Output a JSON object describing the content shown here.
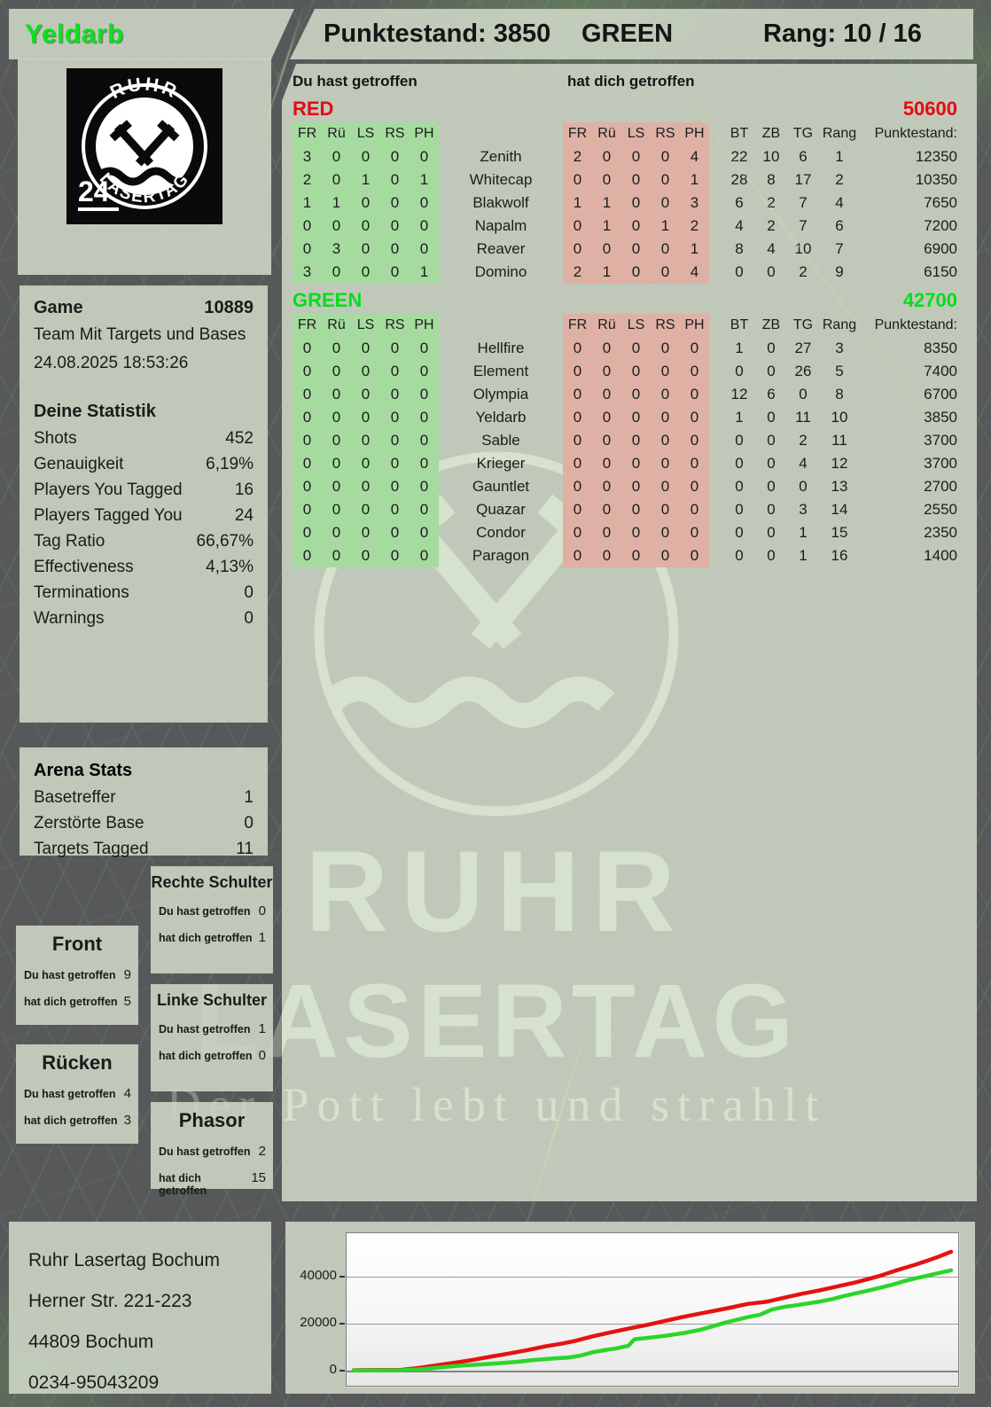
{
  "header": {
    "player": "Yeldarb",
    "punktestand": "Punktestand: 3850",
    "team": "GREEN",
    "rang": "Rang: 10 / 16"
  },
  "logo": {
    "top": "RUHR",
    "bottom": "LASERTAG",
    "badge": "24"
  },
  "watermark": {
    "line1": "RUHR",
    "line2": "LASERTAG",
    "tagline": "Der Pott lebt und strahlt"
  },
  "main": {
    "you_label": "Du hast getroffen",
    "them_label": "hat dich getroffen",
    "hit_cols": [
      "FR",
      "Rü",
      "LS",
      "RS",
      "PH"
    ],
    "stat_cols": [
      "BT",
      "ZB",
      "TG",
      "Rang",
      "Punktestand:"
    ]
  },
  "teams": [
    {
      "name": "RED",
      "color": "#e30b12",
      "total": "50600",
      "rows": [
        {
          "name": "Zenith",
          "you": [
            3,
            0,
            0,
            0,
            0
          ],
          "them": [
            2,
            0,
            0,
            0,
            4
          ],
          "bt": 22,
          "zb": 10,
          "tg": 6,
          "rang": 1,
          "punkte": "12350"
        },
        {
          "name": "Whitecap",
          "you": [
            2,
            0,
            1,
            0,
            1
          ],
          "them": [
            0,
            0,
            0,
            0,
            1
          ],
          "bt": 28,
          "zb": 8,
          "tg": 17,
          "rang": 2,
          "punkte": "10350"
        },
        {
          "name": "Blakwolf",
          "you": [
            1,
            1,
            0,
            0,
            0
          ],
          "them": [
            1,
            1,
            0,
            0,
            3
          ],
          "bt": 6,
          "zb": 2,
          "tg": 7,
          "rang": 4,
          "punkte": "7650"
        },
        {
          "name": "Napalm",
          "you": [
            0,
            0,
            0,
            0,
            0
          ],
          "them": [
            0,
            1,
            0,
            1,
            2
          ],
          "bt": 4,
          "zb": 2,
          "tg": 7,
          "rang": 6,
          "punkte": "7200"
        },
        {
          "name": "Reaver",
          "you": [
            0,
            3,
            0,
            0,
            0
          ],
          "them": [
            0,
            0,
            0,
            0,
            1
          ],
          "bt": 8,
          "zb": 4,
          "tg": 10,
          "rang": 7,
          "punkte": "6900"
        },
        {
          "name": "Domino",
          "you": [
            3,
            0,
            0,
            0,
            1
          ],
          "them": [
            2,
            1,
            0,
            0,
            4
          ],
          "bt": 0,
          "zb": 0,
          "tg": 2,
          "rang": 9,
          "punkte": "6150"
        }
      ]
    },
    {
      "name": "GREEN",
      "color": "#07dd1b",
      "total": "42700",
      "rows": [
        {
          "name": "Hellfire",
          "you": [
            0,
            0,
            0,
            0,
            0
          ],
          "them": [
            0,
            0,
            0,
            0,
            0
          ],
          "bt": 1,
          "zb": 0,
          "tg": 27,
          "rang": 3,
          "punkte": "8350"
        },
        {
          "name": "Element",
          "you": [
            0,
            0,
            0,
            0,
            0
          ],
          "them": [
            0,
            0,
            0,
            0,
            0
          ],
          "bt": 0,
          "zb": 0,
          "tg": 26,
          "rang": 5,
          "punkte": "7400"
        },
        {
          "name": "Olympia",
          "you": [
            0,
            0,
            0,
            0,
            0
          ],
          "them": [
            0,
            0,
            0,
            0,
            0
          ],
          "bt": 12,
          "zb": 6,
          "tg": 0,
          "rang": 8,
          "punkte": "6700"
        },
        {
          "name": "Yeldarb",
          "you": [
            0,
            0,
            0,
            0,
            0
          ],
          "them": [
            0,
            0,
            0,
            0,
            0
          ],
          "bt": 1,
          "zb": 0,
          "tg": 11,
          "rang": 10,
          "punkte": "3850"
        },
        {
          "name": "Sable",
          "you": [
            0,
            0,
            0,
            0,
            0
          ],
          "them": [
            0,
            0,
            0,
            0,
            0
          ],
          "bt": 0,
          "zb": 0,
          "tg": 2,
          "rang": 11,
          "punkte": "3700"
        },
        {
          "name": "Krieger",
          "you": [
            0,
            0,
            0,
            0,
            0
          ],
          "them": [
            0,
            0,
            0,
            0,
            0
          ],
          "bt": 0,
          "zb": 0,
          "tg": 4,
          "rang": 12,
          "punkte": "3700"
        },
        {
          "name": "Gauntlet",
          "you": [
            0,
            0,
            0,
            0,
            0
          ],
          "them": [
            0,
            0,
            0,
            0,
            0
          ],
          "bt": 0,
          "zb": 0,
          "tg": 0,
          "rang": 13,
          "punkte": "2700"
        },
        {
          "name": "Quazar",
          "you": [
            0,
            0,
            0,
            0,
            0
          ],
          "them": [
            0,
            0,
            0,
            0,
            0
          ],
          "bt": 0,
          "zb": 0,
          "tg": 3,
          "rang": 14,
          "punkte": "2550"
        },
        {
          "name": "Condor",
          "you": [
            0,
            0,
            0,
            0,
            0
          ],
          "them": [
            0,
            0,
            0,
            0,
            0
          ],
          "bt": 0,
          "zb": 0,
          "tg": 1,
          "rang": 15,
          "punkte": "2350"
        },
        {
          "name": "Paragon",
          "you": [
            0,
            0,
            0,
            0,
            0
          ],
          "them": [
            0,
            0,
            0,
            0,
            0
          ],
          "bt": 0,
          "zb": 0,
          "tg": 1,
          "rang": 16,
          "punkte": "1400"
        }
      ]
    }
  ],
  "game": {
    "game_label": "Game",
    "game_number": "10889",
    "team_mode": "Team Mit Targets und Bases",
    "datetime": "24.08.2025 18:53:26",
    "stats_title": "Deine Statistik",
    "stats": [
      [
        "Shots",
        "452"
      ],
      [
        "Genauigkeit",
        "6,19%"
      ],
      [
        "Players You Tagged",
        "16"
      ],
      [
        "Players Tagged You",
        "24"
      ],
      [
        "Tag Ratio",
        "66,67%"
      ],
      [
        "Effectiveness",
        "4,13%"
      ],
      [
        "Terminations",
        "0"
      ],
      [
        "Warnings",
        "0"
      ]
    ]
  },
  "arena": {
    "title": "Arena Stats",
    "stats": [
      [
        "Basetreffer",
        "1"
      ],
      [
        "Zerstörte Base",
        "0"
      ],
      [
        "Targets Tagged",
        "11"
      ]
    ]
  },
  "body_parts": {
    "you_label": "Du hast getroffen",
    "them_label": "hat dich getroffen",
    "boxes": [
      {
        "key": "front",
        "title": "Front",
        "you": "9",
        "them": "5"
      },
      {
        "key": "ruecken",
        "title": "Rücken",
        "you": "4",
        "them": "3"
      },
      {
        "key": "rechte",
        "title": "Rechte Schulter",
        "you": "0",
        "them": "1"
      },
      {
        "key": "linke",
        "title": "Linke Schulter",
        "you": "1",
        "them": "0"
      },
      {
        "key": "phasor",
        "title": "Phasor",
        "you": "2",
        "them": "15"
      }
    ]
  },
  "address": {
    "lines": [
      "Ruhr Lasertag Bochum",
      "Herner Str. 221-223",
      "44809 Bochum",
      "0234-95043209"
    ]
  },
  "chart_data": {
    "type": "line",
    "title": "",
    "xlabel": "",
    "ylabel": "",
    "yticks": [
      0,
      20000,
      40000
    ],
    "ylim": [
      0,
      55000
    ],
    "grid": true,
    "legend_position": "none",
    "series": [
      {
        "name": "RED",
        "color": "#e41313",
        "points": [
          [
            0,
            200
          ],
          [
            4,
            250
          ],
          [
            8,
            350
          ],
          [
            11,
            1200
          ],
          [
            14,
            2300
          ],
          [
            17,
            3400
          ],
          [
            20,
            4600
          ],
          [
            23,
            6000
          ],
          [
            26,
            7300
          ],
          [
            29,
            8700
          ],
          [
            32,
            10300
          ],
          [
            35,
            11600
          ],
          [
            37,
            12600
          ],
          [
            40,
            14600
          ],
          [
            43,
            16300
          ],
          [
            46,
            17900
          ],
          [
            49,
            19400
          ],
          [
            52,
            21100
          ],
          [
            55,
            22800
          ],
          [
            58,
            24300
          ],
          [
            60,
            25300
          ],
          [
            63,
            26800
          ],
          [
            66,
            28400
          ],
          [
            69,
            29300
          ],
          [
            72,
            31000
          ],
          [
            75,
            32700
          ],
          [
            78,
            34200
          ],
          [
            81,
            35900
          ],
          [
            84,
            37600
          ],
          [
            86,
            38900
          ],
          [
            88,
            40300
          ],
          [
            90,
            42000
          ],
          [
            92,
            43600
          ],
          [
            94,
            45100
          ],
          [
            96,
            46800
          ],
          [
            98,
            48600
          ],
          [
            100,
            50600
          ]
        ]
      },
      {
        "name": "GREEN",
        "color": "#2bd52b",
        "points": [
          [
            0,
            100
          ],
          [
            5,
            150
          ],
          [
            8,
            200
          ],
          [
            12,
            700
          ],
          [
            15,
            1500
          ],
          [
            18,
            2200
          ],
          [
            21,
            2600
          ],
          [
            24,
            3100
          ],
          [
            27,
            3700
          ],
          [
            30,
            4500
          ],
          [
            33,
            5100
          ],
          [
            36,
            5600
          ],
          [
            38,
            6400
          ],
          [
            40,
            7800
          ],
          [
            42,
            8700
          ],
          [
            44,
            9500
          ],
          [
            46,
            10600
          ],
          [
            47,
            13400
          ],
          [
            49,
            13900
          ],
          [
            52,
            14800
          ],
          [
            55,
            15900
          ],
          [
            58,
            17400
          ],
          [
            60,
            18800
          ],
          [
            62,
            20300
          ],
          [
            64,
            21600
          ],
          [
            66,
            22800
          ],
          [
            68,
            23800
          ],
          [
            70,
            26000
          ],
          [
            72,
            27100
          ],
          [
            74,
            27800
          ],
          [
            76,
            28600
          ],
          [
            78,
            29400
          ],
          [
            80,
            30400
          ],
          [
            82,
            31700
          ],
          [
            84,
            32900
          ],
          [
            86,
            34000
          ],
          [
            88,
            35200
          ],
          [
            90,
            36500
          ],
          [
            92,
            38000
          ],
          [
            94,
            39300
          ],
          [
            96,
            40400
          ],
          [
            98,
            41600
          ],
          [
            100,
            42700
          ]
        ]
      }
    ]
  }
}
